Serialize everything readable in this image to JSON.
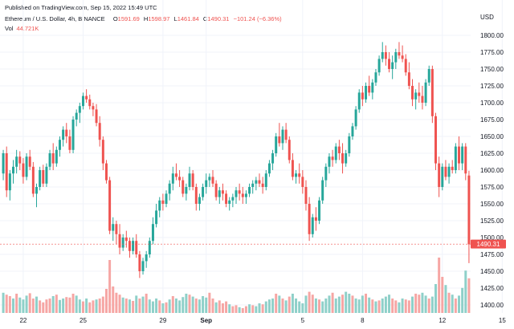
{
  "header": {
    "published": "Published on TradingView.com, Sep 15, 2022 15:49 UTC",
    "symbol": "Ethereum / U.S. Dollar, 4h, BINANCE",
    "o_label": "O",
    "o_value": "1591.69",
    "h_label": "H",
    "h_value": "1598.97",
    "l_label": "L",
    "l_value": "1461.84",
    "c_label": "C",
    "c_value": "1490.31",
    "change": "−101.24 (−6.36%)",
    "vol_label": "Vol",
    "vol_value": "44.721K"
  },
  "colors": {
    "up": "#26a69a",
    "down": "#ef5350",
    "vol_up": "#8fd0c9",
    "vol_down": "#f6a6a4",
    "grid": "#f0f3fa",
    "last_price_bg": "#ef5350",
    "axis_text": "#131722"
  },
  "chart_data": {
    "type": "candlestick",
    "currency_label": "USD",
    "interval": "4h",
    "ylim": [
      1385,
      1815
    ],
    "y_ticks": [
      "1800.00",
      "1775.00",
      "1750.00",
      "1725.00",
      "1700.00",
      "1675.00",
      "1650.00",
      "1625.00",
      "1600.00",
      "1575.00",
      "1550.00",
      "1525.00",
      "1500.00",
      "1475.00",
      "1450.00",
      "1425.00",
      "1400.00"
    ],
    "x_ticks": [
      {
        "label": "22",
        "bar": 6
      },
      {
        "label": "25",
        "bar": 24
      },
      {
        "label": "29",
        "bar": 48
      },
      {
        "label": "Sep",
        "bar": 61,
        "bold": true
      },
      {
        "label": "5",
        "bar": 90
      },
      {
        "label": "8",
        "bar": 108
      },
      {
        "label": "12",
        "bar": 132
      },
      {
        "label": "15",
        "bar": 150
      }
    ],
    "last_price": "1490.31",
    "ohlc": [
      [
        1595,
        1630,
        1585,
        1625
      ],
      [
        1625,
        1635,
        1560,
        1570
      ],
      [
        1570,
        1600,
        1555,
        1595
      ],
      [
        1595,
        1615,
        1580,
        1605
      ],
      [
        1605,
        1630,
        1595,
        1620
      ],
      [
        1620,
        1628,
        1600,
        1610
      ],
      [
        1610,
        1618,
        1580,
        1590
      ],
      [
        1590,
        1625,
        1585,
        1620
      ],
      [
        1620,
        1630,
        1600,
        1605
      ],
      [
        1605,
        1612,
        1560,
        1565
      ],
      [
        1565,
        1580,
        1545,
        1575
      ],
      [
        1575,
        1605,
        1570,
        1600
      ],
      [
        1600,
        1608,
        1575,
        1580
      ],
      [
        1580,
        1610,
        1575,
        1605
      ],
      [
        1605,
        1630,
        1600,
        1625
      ],
      [
        1625,
        1640,
        1600,
        1610
      ],
      [
        1610,
        1635,
        1605,
        1630
      ],
      [
        1630,
        1650,
        1620,
        1645
      ],
      [
        1645,
        1665,
        1635,
        1660
      ],
      [
        1660,
        1670,
        1640,
        1650
      ],
      [
        1650,
        1660,
        1625,
        1630
      ],
      [
        1630,
        1680,
        1625,
        1675
      ],
      [
        1675,
        1690,
        1665,
        1685
      ],
      [
        1685,
        1700,
        1670,
        1695
      ],
      [
        1695,
        1715,
        1690,
        1710
      ],
      [
        1710,
        1720,
        1700,
        1705
      ],
      [
        1705,
        1712,
        1690,
        1695
      ],
      [
        1695,
        1700,
        1680,
        1690
      ],
      [
        1690,
        1698,
        1665,
        1670
      ],
      [
        1670,
        1680,
        1635,
        1645
      ],
      [
        1645,
        1650,
        1600,
        1610
      ],
      [
        1610,
        1615,
        1580,
        1585
      ],
      [
        1585,
        1590,
        1505,
        1510
      ],
      [
        1510,
        1530,
        1495,
        1520
      ],
      [
        1520,
        1525,
        1490,
        1505
      ],
      [
        1505,
        1520,
        1475,
        1485
      ],
      [
        1485,
        1505,
        1480,
        1500
      ],
      [
        1500,
        1510,
        1485,
        1495
      ],
      [
        1495,
        1500,
        1470,
        1480
      ],
      [
        1480,
        1500,
        1475,
        1495
      ],
      [
        1495,
        1505,
        1470,
        1475
      ],
      [
        1475,
        1480,
        1440,
        1450
      ],
      [
        1450,
        1470,
        1445,
        1465
      ],
      [
        1465,
        1480,
        1455,
        1475
      ],
      [
        1475,
        1500,
        1470,
        1495
      ],
      [
        1495,
        1530,
        1490,
        1520
      ],
      [
        1520,
        1550,
        1515,
        1540
      ],
      [
        1540,
        1560,
        1530,
        1555
      ],
      [
        1555,
        1565,
        1540,
        1550
      ],
      [
        1550,
        1570,
        1545,
        1565
      ],
      [
        1565,
        1585,
        1555,
        1580
      ],
      [
        1580,
        1605,
        1570,
        1595
      ],
      [
        1595,
        1610,
        1585,
        1590
      ],
      [
        1590,
        1600,
        1575,
        1585
      ],
      [
        1585,
        1590,
        1560,
        1565
      ],
      [
        1565,
        1580,
        1555,
        1575
      ],
      [
        1575,
        1605,
        1570,
        1595
      ],
      [
        1595,
        1600,
        1570,
        1575
      ],
      [
        1575,
        1580,
        1540,
        1550
      ],
      [
        1550,
        1565,
        1540,
        1560
      ],
      [
        1560,
        1580,
        1555,
        1575
      ],
      [
        1575,
        1595,
        1565,
        1585
      ],
      [
        1585,
        1595,
        1575,
        1590
      ],
      [
        1590,
        1600,
        1575,
        1580
      ],
      [
        1580,
        1585,
        1555,
        1560
      ],
      [
        1560,
        1575,
        1550,
        1570
      ],
      [
        1570,
        1580,
        1555,
        1565
      ],
      [
        1565,
        1570,
        1545,
        1550
      ],
      [
        1550,
        1560,
        1540,
        1555
      ],
      [
        1555,
        1565,
        1545,
        1560
      ],
      [
        1560,
        1575,
        1550,
        1570
      ],
      [
        1570,
        1580,
        1555,
        1565
      ],
      [
        1565,
        1575,
        1550,
        1560
      ],
      [
        1560,
        1570,
        1550,
        1565
      ],
      [
        1565,
        1580,
        1560,
        1575
      ],
      [
        1575,
        1585,
        1565,
        1580
      ],
      [
        1580,
        1590,
        1570,
        1585
      ],
      [
        1585,
        1595,
        1575,
        1580
      ],
      [
        1580,
        1590,
        1565,
        1575
      ],
      [
        1575,
        1600,
        1570,
        1595
      ],
      [
        1595,
        1615,
        1590,
        1610
      ],
      [
        1610,
        1630,
        1600,
        1625
      ],
      [
        1625,
        1655,
        1620,
        1650
      ],
      [
        1650,
        1670,
        1635,
        1640
      ],
      [
        1640,
        1665,
        1630,
        1660
      ],
      [
        1660,
        1670,
        1640,
        1645
      ],
      [
        1645,
        1650,
        1610,
        1615
      ],
      [
        1615,
        1625,
        1585,
        1590
      ],
      [
        1590,
        1600,
        1580,
        1595
      ],
      [
        1595,
        1610,
        1580,
        1590
      ],
      [
        1590,
        1600,
        1565,
        1575
      ],
      [
        1575,
        1585,
        1540,
        1550
      ],
      [
        1550,
        1560,
        1495,
        1505
      ],
      [
        1505,
        1535,
        1500,
        1530
      ],
      [
        1530,
        1545,
        1510,
        1525
      ],
      [
        1525,
        1560,
        1520,
        1555
      ],
      [
        1555,
        1590,
        1550,
        1585
      ],
      [
        1585,
        1610,
        1575,
        1605
      ],
      [
        1605,
        1625,
        1595,
        1620
      ],
      [
        1620,
        1630,
        1605,
        1615
      ],
      [
        1615,
        1640,
        1610,
        1635
      ],
      [
        1635,
        1645,
        1615,
        1625
      ],
      [
        1625,
        1640,
        1595,
        1610
      ],
      [
        1610,
        1630,
        1605,
        1625
      ],
      [
        1625,
        1655,
        1620,
        1650
      ],
      [
        1650,
        1670,
        1645,
        1665
      ],
      [
        1665,
        1695,
        1660,
        1690
      ],
      [
        1690,
        1720,
        1685,
        1715
      ],
      [
        1715,
        1725,
        1695,
        1705
      ],
      [
        1705,
        1730,
        1700,
        1725
      ],
      [
        1725,
        1740,
        1710,
        1715
      ],
      [
        1715,
        1735,
        1705,
        1730
      ],
      [
        1730,
        1750,
        1725,
        1745
      ],
      [
        1745,
        1770,
        1740,
        1765
      ],
      [
        1765,
        1790,
        1760,
        1775
      ],
      [
        1775,
        1785,
        1755,
        1765
      ],
      [
        1765,
        1775,
        1745,
        1750
      ],
      [
        1750,
        1770,
        1735,
        1760
      ],
      [
        1760,
        1780,
        1750,
        1775
      ],
      [
        1775,
        1790,
        1765,
        1770
      ],
      [
        1770,
        1785,
        1760,
        1765
      ],
      [
        1765,
        1772,
        1740,
        1745
      ],
      [
        1745,
        1760,
        1720,
        1725
      ],
      [
        1725,
        1735,
        1695,
        1705
      ],
      [
        1705,
        1720,
        1690,
        1715
      ],
      [
        1715,
        1730,
        1700,
        1710
      ],
      [
        1710,
        1725,
        1690,
        1700
      ],
      [
        1700,
        1735,
        1695,
        1730
      ],
      [
        1730,
        1755,
        1725,
        1750
      ],
      [
        1750,
        1755,
        1670,
        1680
      ],
      [
        1680,
        1685,
        1600,
        1610
      ],
      [
        1610,
        1620,
        1560,
        1575
      ],
      [
        1575,
        1610,
        1570,
        1605
      ],
      [
        1605,
        1615,
        1585,
        1590
      ],
      [
        1590,
        1610,
        1580,
        1605
      ],
      [
        1605,
        1615,
        1595,
        1600
      ],
      [
        1600,
        1640,
        1595,
        1635
      ],
      [
        1635,
        1650,
        1600,
        1610
      ],
      [
        1610,
        1640,
        1600,
        1635
      ],
      [
        1635,
        1640,
        1585,
        1595
      ],
      [
        1592,
        1599,
        1462,
        1490
      ]
    ],
    "volume": [
      [
        42,
        "up"
      ],
      [
        38,
        "down"
      ],
      [
        35,
        "down"
      ],
      [
        30,
        "up"
      ],
      [
        40,
        "down"
      ],
      [
        32,
        "up"
      ],
      [
        28,
        "up"
      ],
      [
        36,
        "up"
      ],
      [
        41,
        "down"
      ],
      [
        30,
        "down"
      ],
      [
        34,
        "up"
      ],
      [
        26,
        "down"
      ],
      [
        22,
        "down"
      ],
      [
        28,
        "down"
      ],
      [
        30,
        "down"
      ],
      [
        35,
        "up"
      ],
      [
        38,
        "down"
      ],
      [
        27,
        "up"
      ],
      [
        30,
        "up"
      ],
      [
        33,
        "down"
      ],
      [
        32,
        "down"
      ],
      [
        40,
        "down"
      ],
      [
        36,
        "up"
      ],
      [
        28,
        "up"
      ],
      [
        24,
        "down"
      ],
      [
        30,
        "up"
      ],
      [
        22,
        "down"
      ],
      [
        26,
        "down"
      ],
      [
        28,
        "up"
      ],
      [
        30,
        "down"
      ],
      [
        34,
        "down"
      ],
      [
        50,
        "down"
      ],
      [
        110,
        "down"
      ],
      [
        55,
        "down"
      ],
      [
        42,
        "down"
      ],
      [
        38,
        "down"
      ],
      [
        32,
        "up"
      ],
      [
        30,
        "down"
      ],
      [
        28,
        "up"
      ],
      [
        25,
        "down"
      ],
      [
        36,
        "up"
      ],
      [
        30,
        "down"
      ],
      [
        34,
        "up"
      ],
      [
        40,
        "down"
      ],
      [
        28,
        "up"
      ],
      [
        24,
        "up"
      ],
      [
        30,
        "up"
      ],
      [
        26,
        "down"
      ],
      [
        20,
        "up"
      ],
      [
        22,
        "down"
      ],
      [
        28,
        "up"
      ],
      [
        35,
        "down"
      ],
      [
        30,
        "up"
      ],
      [
        26,
        "up"
      ],
      [
        33,
        "up"
      ],
      [
        40,
        "up"
      ],
      [
        38,
        "down"
      ],
      [
        34,
        "up"
      ],
      [
        30,
        "down"
      ],
      [
        28,
        "up"
      ],
      [
        35,
        "up"
      ],
      [
        32,
        "up"
      ],
      [
        42,
        "down"
      ],
      [
        30,
        "down"
      ],
      [
        22,
        "up"
      ],
      [
        26,
        "down"
      ],
      [
        20,
        "down"
      ],
      [
        24,
        "down"
      ],
      [
        18,
        "up"
      ],
      [
        14,
        "down"
      ],
      [
        16,
        "down"
      ],
      [
        12,
        "up"
      ],
      [
        10,
        "down"
      ],
      [
        14,
        "down"
      ],
      [
        18,
        "up"
      ],
      [
        16,
        "down"
      ],
      [
        14,
        "up"
      ],
      [
        20,
        "up"
      ],
      [
        18,
        "down"
      ],
      [
        24,
        "up"
      ],
      [
        28,
        "up"
      ],
      [
        30,
        "up"
      ],
      [
        40,
        "down"
      ],
      [
        36,
        "up"
      ],
      [
        30,
        "down"
      ],
      [
        26,
        "up"
      ],
      [
        34,
        "down"
      ],
      [
        40,
        "up"
      ],
      [
        30,
        "up"
      ],
      [
        24,
        "up"
      ],
      [
        20,
        "up"
      ],
      [
        36,
        "up"
      ],
      [
        44,
        "down"
      ],
      [
        38,
        "down"
      ],
      [
        30,
        "up"
      ],
      [
        28,
        "down"
      ],
      [
        24,
        "up"
      ],
      [
        30,
        "up"
      ],
      [
        36,
        "up"
      ],
      [
        42,
        "down"
      ],
      [
        30,
        "up"
      ],
      [
        34,
        "up"
      ],
      [
        38,
        "down"
      ],
      [
        44,
        "up"
      ],
      [
        40,
        "up"
      ],
      [
        36,
        "down"
      ],
      [
        30,
        "up"
      ],
      [
        28,
        "up"
      ],
      [
        36,
        "up"
      ],
      [
        40,
        "down"
      ],
      [
        32,
        "up"
      ],
      [
        28,
        "down"
      ],
      [
        24,
        "up"
      ],
      [
        26,
        "down"
      ],
      [
        30,
        "up"
      ],
      [
        34,
        "up"
      ],
      [
        38,
        "up"
      ],
      [
        30,
        "down"
      ],
      [
        26,
        "down"
      ],
      [
        22,
        "up"
      ],
      [
        30,
        "up"
      ],
      [
        28,
        "down"
      ],
      [
        26,
        "down"
      ],
      [
        34,
        "up"
      ],
      [
        40,
        "down"
      ],
      [
        38,
        "down"
      ],
      [
        42,
        "up"
      ],
      [
        36,
        "up"
      ],
      [
        30,
        "down"
      ],
      [
        34,
        "up"
      ],
      [
        60,
        "up"
      ],
      [
        115,
        "down"
      ],
      [
        75,
        "down"
      ],
      [
        58,
        "up"
      ],
      [
        42,
        "down"
      ],
      [
        38,
        "up"
      ],
      [
        30,
        "down"
      ],
      [
        36,
        "up"
      ],
      [
        52,
        "up"
      ],
      [
        88,
        "up"
      ],
      [
        72,
        "down"
      ]
    ]
  }
}
